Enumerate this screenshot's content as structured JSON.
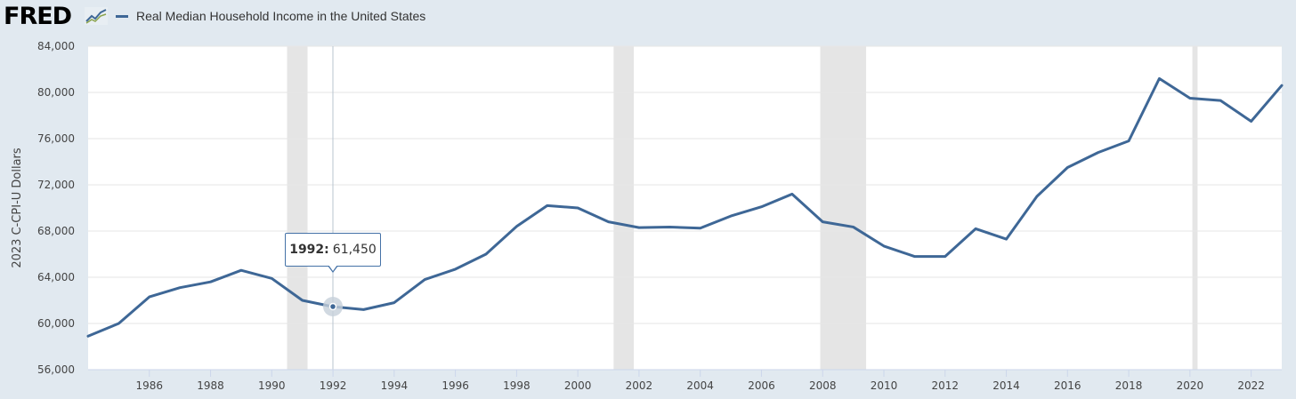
{
  "header": {
    "logo_text": "FRED",
    "legend_label": "Real Median Household Income in the United States"
  },
  "colors": {
    "series": "#3e6796",
    "recession": "#e5e5e5",
    "background": "#e1e9f0"
  },
  "tooltip": {
    "year": "1992:",
    "value": "61,450"
  },
  "chart_data": {
    "type": "line",
    "title": "",
    "xlabel": "",
    "ylabel": "2023 C-CPI-U Dollars",
    "xlim": [
      1984,
      2023
    ],
    "ylim": [
      56000,
      84000
    ],
    "yticks": [
      56000,
      60000,
      64000,
      68000,
      72000,
      76000,
      80000,
      84000
    ],
    "ytick_labels": [
      "56,000",
      "60,000",
      "64,000",
      "68,000",
      "72,000",
      "76,000",
      "80,000",
      "84,000"
    ],
    "xticks": [
      1986,
      1988,
      1990,
      1992,
      1994,
      1996,
      1998,
      2000,
      2002,
      2004,
      2006,
      2008,
      2010,
      2012,
      2014,
      2016,
      2018,
      2020,
      2022
    ],
    "xtick_labels": [
      "1986",
      "1988",
      "1990",
      "1992",
      "1994",
      "1996",
      "1998",
      "2000",
      "2002",
      "2004",
      "2006",
      "2008",
      "2010",
      "2012",
      "2014",
      "2016",
      "2018",
      "2020",
      "2022"
    ],
    "grid": true,
    "legend": "top-left",
    "recessions": [
      [
        1990.5,
        1991.17
      ],
      [
        2001.17,
        2001.83
      ],
      [
        2007.92,
        2009.42
      ],
      [
        2020.08,
        2020.25
      ]
    ],
    "series": [
      {
        "name": "Real Median Household Income in the United States",
        "x": [
          1984,
          1985,
          1986,
          1987,
          1988,
          1989,
          1990,
          1991,
          1992,
          1993,
          1994,
          1995,
          1996,
          1997,
          1998,
          1999,
          2000,
          2001,
          2002,
          2003,
          2004,
          2005,
          2006,
          2007,
          2008,
          2009,
          2010,
          2011,
          2012,
          2013,
          2014,
          2015,
          2016,
          2017,
          2018,
          2019,
          2020,
          2021,
          2022,
          2023
        ],
        "values": [
          58900,
          60000,
          62300,
          63100,
          63600,
          64600,
          63900,
          62000,
          61450,
          61200,
          61800,
          63800,
          64700,
          66000,
          68400,
          70200,
          70000,
          68800,
          68300,
          68350,
          68250,
          69300,
          70100,
          71200,
          68800,
          68350,
          66700,
          65800,
          65800,
          68200,
          67300,
          71000,
          73500,
          74800,
          75800,
          81200,
          79500,
          79300,
          77500,
          80600
        ]
      }
    ]
  }
}
